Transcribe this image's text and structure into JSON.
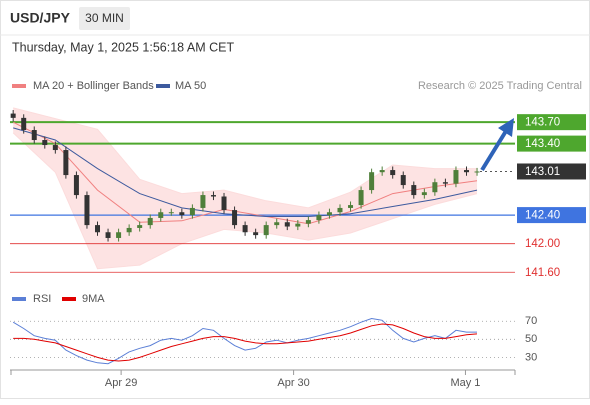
{
  "header": {
    "symbol": "USD/JPY",
    "interval": "30 MIN",
    "timestamp": "Thursday, May 1, 2025 1:56:18 AM CET"
  },
  "chart_data": [
    {
      "type": "candlestick",
      "source": "Research © 2025 Trading Central",
      "xlim": [
        -0.3,
        47.6
      ],
      "ylim": [
        141.52,
        143.94
      ],
      "up_color": "#4f7f3a",
      "down_color": "#333333",
      "candles": {
        "open": [
          143.82,
          143.76,
          143.59,
          143.45,
          143.38,
          143.31,
          142.96,
          142.68,
          142.26,
          142.16,
          142.08,
          142.16,
          142.22,
          142.26,
          142.36,
          142.44,
          142.44,
          142.4,
          142.5,
          142.68,
          142.66,
          142.47,
          142.26,
          142.16,
          142.12,
          142.26,
          142.3,
          142.24,
          142.28,
          142.33,
          142.4,
          142.44,
          142.5,
          142.54,
          142.75,
          143.0,
          143.03,
          142.96,
          142.82,
          142.68,
          142.72,
          142.86,
          142.84,
          143.03,
          143.0
        ],
        "high": [
          143.87,
          143.81,
          143.64,
          143.5,
          143.43,
          143.36,
          143.01,
          142.73,
          142.31,
          142.21,
          142.21,
          142.27,
          142.31,
          142.41,
          142.49,
          142.49,
          142.49,
          142.55,
          142.73,
          142.73,
          142.71,
          142.52,
          142.31,
          142.21,
          142.31,
          142.35,
          142.35,
          142.33,
          142.38,
          142.45,
          142.49,
          142.55,
          142.59,
          142.8,
          143.05,
          143.08,
          143.08,
          143.01,
          142.87,
          142.77,
          142.91,
          142.91,
          143.08,
          143.08,
          143.06
        ],
        "low": [
          143.71,
          143.54,
          143.4,
          143.33,
          143.26,
          142.91,
          142.63,
          142.21,
          142.11,
          142.03,
          142.03,
          142.11,
          142.17,
          142.21,
          142.31,
          142.39,
          142.35,
          142.35,
          142.45,
          142.61,
          142.42,
          142.21,
          142.11,
          142.07,
          142.07,
          142.21,
          142.19,
          142.19,
          142.23,
          142.28,
          142.35,
          142.39,
          142.45,
          142.49,
          142.7,
          142.95,
          142.91,
          142.77,
          142.63,
          142.63,
          142.67,
          142.79,
          142.79,
          142.95,
          142.95
        ],
        "close": [
          143.76,
          143.59,
          143.45,
          143.38,
          143.31,
          142.96,
          142.68,
          142.26,
          142.16,
          142.08,
          142.16,
          142.22,
          142.26,
          142.36,
          142.44,
          142.44,
          142.4,
          142.5,
          142.68,
          142.66,
          142.47,
          142.26,
          142.16,
          142.12,
          142.26,
          142.3,
          142.24,
          142.28,
          142.33,
          142.4,
          142.44,
          142.5,
          142.54,
          142.75,
          143.0,
          143.03,
          142.96,
          142.82,
          142.68,
          142.72,
          142.86,
          142.84,
          143.03,
          143.0,
          143.01
        ]
      },
      "series": [
        {
          "name": "MA 20 + Bollinger Bands",
          "color": "#f08080",
          "band_color": "#fcdcdc",
          "x": [
            0,
            4,
            8,
            12,
            16,
            20,
            24,
            28,
            32,
            36,
            40,
            44
          ],
          "values": [
            143.7,
            143.4,
            142.75,
            142.3,
            142.32,
            142.48,
            142.38,
            142.28,
            142.45,
            142.7,
            142.8,
            142.88
          ],
          "upper": [
            143.9,
            143.75,
            143.6,
            142.9,
            142.7,
            142.75,
            142.6,
            142.5,
            142.72,
            143.1,
            143.05,
            143.05
          ],
          "lower": [
            143.55,
            143.0,
            141.65,
            141.7,
            142.0,
            142.2,
            142.15,
            142.05,
            142.15,
            142.35,
            142.55,
            142.7
          ]
        },
        {
          "name": "MA 50",
          "color": "#3d5a9e",
          "x": [
            0,
            4,
            8,
            12,
            16,
            20,
            24,
            28,
            32,
            36,
            40,
            44
          ],
          "values": [
            143.62,
            143.45,
            143.05,
            142.7,
            142.5,
            142.42,
            142.38,
            142.38,
            142.42,
            142.52,
            142.62,
            142.75
          ]
        }
      ],
      "levels": [
        {
          "value": 143.7,
          "label": "143.70",
          "color": "#4ea72e",
          "style": "box"
        },
        {
          "value": 143.4,
          "label": "143.40",
          "color": "#4ea72e",
          "style": "box"
        },
        {
          "value": 143.01,
          "label": "143.01",
          "color": "#333333",
          "style": "current"
        },
        {
          "value": 142.4,
          "label": "142.40",
          "color": "#3f74e0",
          "style": "box"
        },
        {
          "value": 142.0,
          "label": "142.00",
          "color": "#e03030",
          "style": "text"
        },
        {
          "value": 141.6,
          "label": "141.60",
          "color": "#e03030",
          "style": "text"
        }
      ]
    },
    {
      "type": "line",
      "xlim": [
        -0.3,
        47.6
      ],
      "ylim": [
        16,
        88
      ],
      "yticks": [
        30,
        50,
        70
      ],
      "xticks": [
        {
          "value": 10.24,
          "label": "Apr 29"
        },
        {
          "value": 26.6,
          "label": "Apr 30"
        },
        {
          "value": 42.9,
          "label": "May 1"
        }
      ],
      "series": [
        {
          "name": "RSI",
          "color": "#5b7fd6",
          "values": [
            69,
            62,
            54,
            51,
            49,
            38,
            32,
            27,
            24,
            23,
            29,
            36,
            40,
            43,
            49,
            51,
            49,
            54,
            62,
            60,
            51,
            43,
            38,
            40,
            47,
            49,
            46,
            49,
            51,
            54,
            57,
            60,
            64,
            69,
            73,
            71,
            60,
            51,
            47,
            51,
            54,
            51,
            60,
            58,
            58
          ]
        },
        {
          "name": "9MA",
          "color": "#e00000",
          "values": [
            51,
            51,
            50,
            48,
            46,
            42,
            38,
            34,
            30,
            27,
            26,
            27,
            30,
            34,
            38,
            42,
            45,
            48,
            51,
            53,
            53,
            51,
            48,
            46,
            45,
            45,
            46,
            47,
            48,
            50,
            52,
            54,
            57,
            61,
            65,
            67,
            66,
            62,
            57,
            53,
            51,
            51,
            53,
            55,
            56
          ]
        }
      ]
    }
  ]
}
